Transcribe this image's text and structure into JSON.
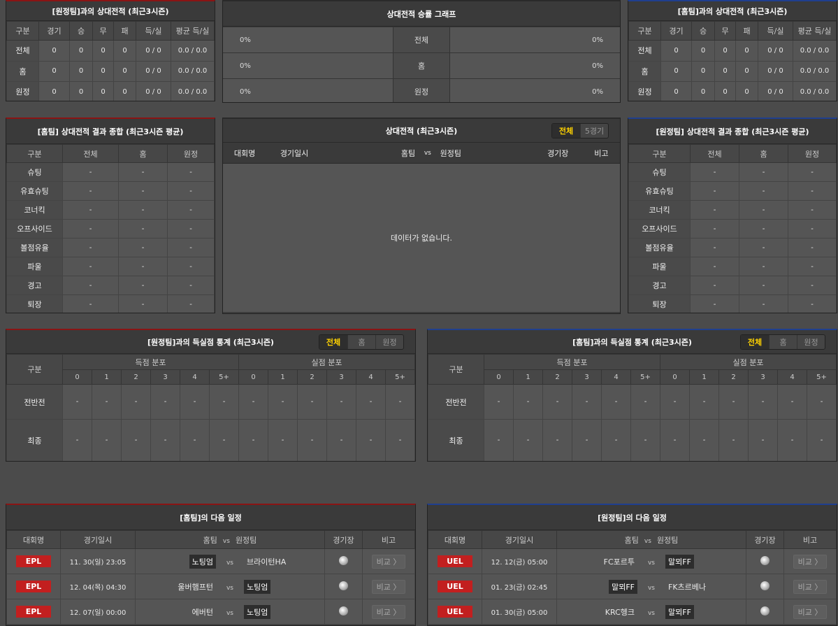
{
  "colors": {
    "home_accent": "#8a1414",
    "away_accent": "#1f3f8f",
    "highlight": "#ffd200",
    "badge": "#c21f1f"
  },
  "h2h_away": {
    "title": "[원정팀]과의 상대전적 (최근3시즌)",
    "headers": [
      "구분",
      "경기",
      "승",
      "무",
      "패",
      "득/실",
      "평균 득/실"
    ],
    "rows": [
      [
        "전체",
        "0",
        "0",
        "0",
        "0",
        "0 / 0",
        "0.0 / 0.0"
      ],
      [
        "홈",
        "0",
        "0",
        "0",
        "0",
        "0 / 0",
        "0.0 / 0.0"
      ],
      [
        "원정",
        "0",
        "0",
        "0",
        "0",
        "0 / 0",
        "0.0 / 0.0"
      ]
    ]
  },
  "graph": {
    "title": "상대전적 승률 그래프",
    "rows": [
      {
        "left": "0%",
        "label": "전체",
        "right": "0%"
      },
      {
        "left": "0%",
        "label": "홈",
        "right": "0%"
      },
      {
        "left": "0%",
        "label": "원정",
        "right": "0%"
      }
    ]
  },
  "h2h_home": {
    "title": "[홈팀]과의 상대전적 (최근3시즌)",
    "headers": [
      "구분",
      "경기",
      "승",
      "무",
      "패",
      "득/실",
      "평균 득/실"
    ],
    "rows": [
      [
        "전체",
        "0",
        "0",
        "0",
        "0",
        "0 / 0",
        "0.0 / 0.0"
      ],
      [
        "홈",
        "0",
        "0",
        "0",
        "0",
        "0 / 0",
        "0.0 / 0.0"
      ],
      [
        "원정",
        "0",
        "0",
        "0",
        "0",
        "0 / 0",
        "0.0 / 0.0"
      ]
    ]
  },
  "summary_home": {
    "title": "[홈팀] 상대전적 결과 종합 (최근3시즌 평균)",
    "headers": [
      "구분",
      "전체",
      "홈",
      "원정"
    ],
    "rows": [
      [
        "슈팅",
        "-",
        "-",
        "-"
      ],
      [
        "유효슈팅",
        "-",
        "-",
        "-"
      ],
      [
        "코너킥",
        "-",
        "-",
        "-"
      ],
      [
        "오프사이드",
        "-",
        "-",
        "-"
      ],
      [
        "볼점유율",
        "-",
        "-",
        "-"
      ],
      [
        "파울",
        "-",
        "-",
        "-"
      ],
      [
        "경고",
        "-",
        "-",
        "-"
      ],
      [
        "퇴장",
        "-",
        "-",
        "-"
      ]
    ]
  },
  "h2h_list": {
    "title": "상대전적 (최근3시즌)",
    "tabs": [
      "전체",
      "5경기"
    ],
    "headers": [
      "대회명",
      "경기일시",
      "홈팀",
      "vs",
      "원정팀",
      "경기장",
      "비고"
    ],
    "empty": "데이터가 없습니다."
  },
  "summary_away": {
    "title": "[원정팀] 상대전적 결과 종합 (최근3시즌 평균)",
    "headers": [
      "구분",
      "전체",
      "홈",
      "원정"
    ],
    "rows": [
      [
        "슈팅",
        "-",
        "-",
        "-"
      ],
      [
        "유효슈팅",
        "-",
        "-",
        "-"
      ],
      [
        "코너킥",
        "-",
        "-",
        "-"
      ],
      [
        "오프사이드",
        "-",
        "-",
        "-"
      ],
      [
        "볼점유율",
        "-",
        "-",
        "-"
      ],
      [
        "파울",
        "-",
        "-",
        "-"
      ],
      [
        "경고",
        "-",
        "-",
        "-"
      ],
      [
        "퇴장",
        "-",
        "-",
        "-"
      ]
    ]
  },
  "goals_away": {
    "title": "[원정팀]과의 득실점 통계 (최근3시즌)",
    "tabs": [
      "전체",
      "홈",
      "원정"
    ],
    "col_label": "구분",
    "group1": "득점 분포",
    "group2": "실점 분포",
    "buckets": [
      "0",
      "1",
      "2",
      "3",
      "4",
      "5+"
    ],
    "rows": [
      {
        "label": "전반전",
        "values": [
          "-",
          "-",
          "-",
          "-",
          "-",
          "-",
          "-",
          "-",
          "-",
          "-",
          "-",
          "-"
        ]
      },
      {
        "label": "최종",
        "values": [
          "-",
          "-",
          "-",
          "-",
          "-",
          "-",
          "-",
          "-",
          "-",
          "-",
          "-",
          "-"
        ]
      }
    ]
  },
  "goals_home": {
    "title": "[홈팀]과의 득실점 통계 (최근3시즌)",
    "tabs": [
      "전체",
      "홈",
      "원정"
    ],
    "col_label": "구분",
    "group1": "득점 분포",
    "group2": "실점 분포",
    "buckets": [
      "0",
      "1",
      "2",
      "3",
      "4",
      "5+"
    ],
    "rows": [
      {
        "label": "전반전",
        "values": [
          "-",
          "-",
          "-",
          "-",
          "-",
          "-",
          "-",
          "-",
          "-",
          "-",
          "-",
          "-"
        ]
      },
      {
        "label": "최종",
        "values": [
          "-",
          "-",
          "-",
          "-",
          "-",
          "-",
          "-",
          "-",
          "-",
          "-",
          "-",
          "-"
        ]
      }
    ]
  },
  "next_home": {
    "title": "[홈팀]의 다음 일정",
    "headers": [
      "대회명",
      "경기일시",
      "홈팀",
      "vs",
      "원정팀",
      "경기장",
      "비고"
    ],
    "rows": [
      {
        "league": "EPL",
        "date": "11. 30(일) 23:05",
        "home": "노팅엄",
        "vs": "vs",
        "away": "브라이턴HA",
        "hl": "home",
        "compare": "비교 〉"
      },
      {
        "league": "EPL",
        "date": "12. 04(목) 04:30",
        "home": "울버햄프턴",
        "vs": "vs",
        "away": "노팅엄",
        "hl": "away",
        "compare": "비교 〉"
      },
      {
        "league": "EPL",
        "date": "12. 07(일) 00:00",
        "home": "에버턴",
        "vs": "vs",
        "away": "노팅엄",
        "hl": "away",
        "compare": "비교 〉"
      }
    ]
  },
  "next_away": {
    "title": "[원정팀]의 다음 일정",
    "headers": [
      "대회명",
      "경기일시",
      "홈팀",
      "vs",
      "원정팀",
      "경기장",
      "비고"
    ],
    "rows": [
      {
        "league": "UEL",
        "date": "12. 12(금) 05:00",
        "home": "FC포르투",
        "vs": "vs",
        "away": "말뫼FF",
        "hl": "away",
        "compare": "비교 〉"
      },
      {
        "league": "UEL",
        "date": "01. 23(금) 02:45",
        "home": "말뫼FF",
        "vs": "vs",
        "away": "FK츠르베나",
        "hl": "home",
        "compare": "비교 〉"
      },
      {
        "league": "UEL",
        "date": "01. 30(금) 05:00",
        "home": "KRC헹크",
        "vs": "vs",
        "away": "말뫼FF",
        "hl": "away",
        "compare": "비교 〉"
      }
    ]
  }
}
